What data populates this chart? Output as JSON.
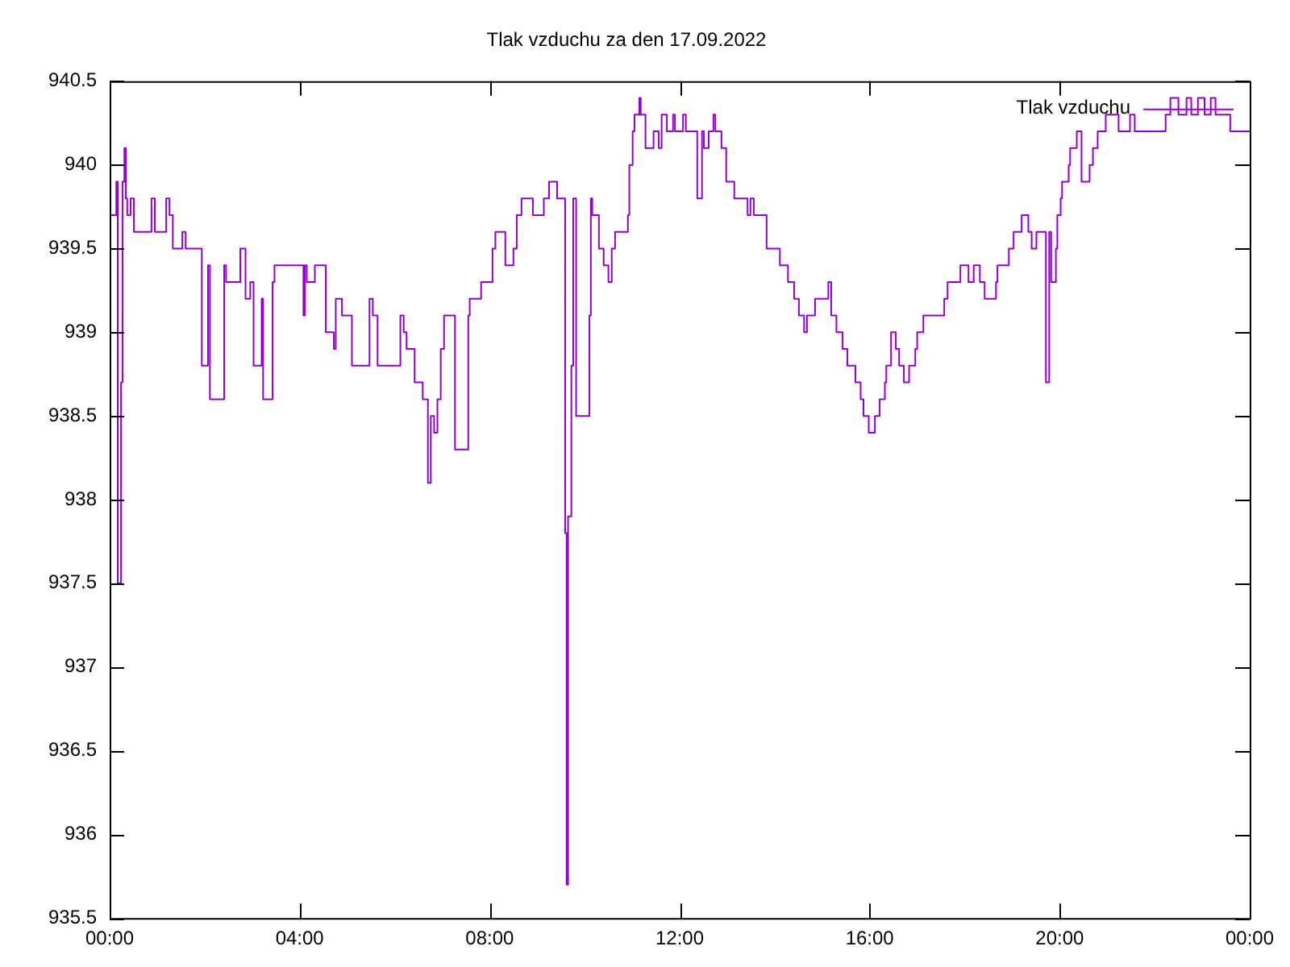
{
  "chart_data": {
    "type": "step",
    "title": "Tlak vzduchu za den 17.09.2022",
    "legend": "top right",
    "grid": false,
    "marker": "none",
    "line_style": "solid",
    "xlim": [
      0,
      24
    ],
    "xticks": [
      {
        "value": 0,
        "label": "00:00"
      },
      {
        "value": 4,
        "label": "04:00"
      },
      {
        "value": 8,
        "label": "08:00"
      },
      {
        "value": 12,
        "label": "12:00"
      },
      {
        "value": 16,
        "label": "16:00"
      },
      {
        "value": 20,
        "label": "20:00"
      },
      {
        "value": 24,
        "label": "00:00"
      }
    ],
    "ylim": [
      935.5,
      940.5
    ],
    "yticks": [
      935.5,
      936,
      936.5,
      937,
      937.5,
      938,
      938.5,
      939,
      939.5,
      940,
      940.5
    ],
    "series": [
      {
        "name": "Tlak vzduchu",
        "color": "#9400d3",
        "x": [
          0,
          0.14,
          0.17,
          0.24,
          0.27,
          0.31,
          0.34,
          0.37,
          0.44,
          0.51,
          0.88,
          0.95,
          1.19,
          1.26,
          1.33,
          1.53,
          1.6,
          1.94,
          2.07,
          2.11,
          2.41,
          2.45,
          2.75,
          2.86,
          2.96,
          3.03,
          3.2,
          3.23,
          3.43,
          3.47,
          4.08,
          4.11,
          4.15,
          4.32,
          4.55,
          4.72,
          4.76,
          4.89,
          5.1,
          5.47,
          5.54,
          5.64,
          6.12,
          6.19,
          6.25,
          6.42,
          6.59,
          6.7,
          6.76,
          6.83,
          6.9,
          6.97,
          7.04,
          7.27,
          7.55,
          7.58,
          7.82,
          8.06,
          8.12,
          8.33,
          8.5,
          8.57,
          8.67,
          8.91,
          9.14,
          9.25,
          9.42,
          9.59,
          9.62,
          9.65,
          9.72,
          9.76,
          9.82,
          10.1,
          10.13,
          10.16,
          10.3,
          10.4,
          10.5,
          10.57,
          10.64,
          10.91,
          10.94,
          11.01,
          11.05,
          11.15,
          11.18,
          11.28,
          11.45,
          11.56,
          11.62,
          11.73,
          11.86,
          11.9,
          12.07,
          12.13,
          12.37,
          12.47,
          12.51,
          12.61,
          12.71,
          12.75,
          12.88,
          12.98,
          13.15,
          13.43,
          13.49,
          13.56,
          13.83,
          14.11,
          14.28,
          14.41,
          14.51,
          14.62,
          14.68,
          14.85,
          15.13,
          15.19,
          15.3,
          15.43,
          15.53,
          15.7,
          15.81,
          15.87,
          15.98,
          16.11,
          16.21,
          16.32,
          16.35,
          16.45,
          16.55,
          16.62,
          16.72,
          16.83,
          16.96,
          17,
          17.13,
          17.57,
          17.64,
          17.91,
          18.08,
          18.19,
          18.32,
          18.42,
          18.66,
          18.69,
          18.93,
          19.03,
          19.2,
          19.34,
          19.41,
          19.51,
          19.71,
          19.78,
          19.82,
          19.92,
          19.95,
          20.02,
          20.05,
          20.19,
          20.22,
          20.36,
          20.46,
          20.63,
          20.7,
          20.8,
          20.97,
          21.24,
          21.48,
          21.58,
          22.23,
          22.33,
          22.5,
          22.67,
          22.77,
          22.91,
          23.05,
          23.18,
          23.28,
          23.59,
          23.93,
          24
        ],
        "values": [
          939.9,
          939.7,
          939.9,
          937.5,
          938.7,
          939.9,
          940.1,
          939.8,
          939.7,
          939.8,
          939.6,
          939.8,
          939.6,
          939.8,
          939.7,
          939.5,
          939.6,
          939.5,
          938.8,
          939.4,
          938.6,
          939.4,
          939.3,
          939.5,
          939.2,
          939.3,
          938.8,
          939.2,
          938.6,
          939.3,
          939.4,
          939.1,
          939.4,
          939.3,
          939.4,
          939,
          938.9,
          939.2,
          939.1,
          938.8,
          939.2,
          939.1,
          938.8,
          939.1,
          939,
          938.9,
          938.7,
          938.6,
          938.1,
          938.5,
          938.4,
          938.6,
          938.9,
          939.1,
          938.3,
          939.1,
          939.2,
          939.3,
          939.5,
          939.6,
          939.4,
          939.5,
          939.7,
          939.8,
          939.7,
          939.8,
          939.9,
          939.8,
          937.8,
          935.7,
          937.9,
          938.8,
          939.8,
          938.5,
          939.1,
          939.8,
          939.7,
          939.5,
          939.4,
          939.3,
          939.5,
          939.6,
          939.7,
          940,
          940.2,
          940.3,
          940.4,
          940.3,
          940.1,
          940.2,
          940.1,
          940.3,
          940.2,
          940.3,
          940.2,
          940.3,
          940.2,
          939.8,
          940.2,
          940.1,
          940.2,
          940.3,
          940.2,
          940.1,
          939.9,
          939.8,
          939.7,
          939.8,
          939.7,
          939.5,
          939.4,
          939.3,
          939.2,
          939.1,
          939,
          939.1,
          939.2,
          939.3,
          939.1,
          939,
          938.9,
          938.8,
          938.7,
          938.6,
          938.5,
          938.4,
          938.5,
          938.6,
          938.7,
          938.8,
          939,
          938.9,
          938.8,
          938.7,
          938.8,
          938.9,
          939,
          939.1,
          939.2,
          939.3,
          939.4,
          939.3,
          939.4,
          939.3,
          939.2,
          939.3,
          939.4,
          939.5,
          939.6,
          939.7,
          939.6,
          939.5,
          939.6,
          938.7,
          939.6,
          939.3,
          939.5,
          939.7,
          939.8,
          939.9,
          940,
          940.1,
          940.2,
          939.9,
          940,
          940.1,
          940.2,
          940.3,
          940.2,
          940.3,
          940.2,
          940.3,
          940.4,
          940.3,
          940.4,
          940.3,
          940.4,
          940.3,
          940.4,
          940.3,
          940.2,
          940.2
        ]
      }
    ]
  }
}
